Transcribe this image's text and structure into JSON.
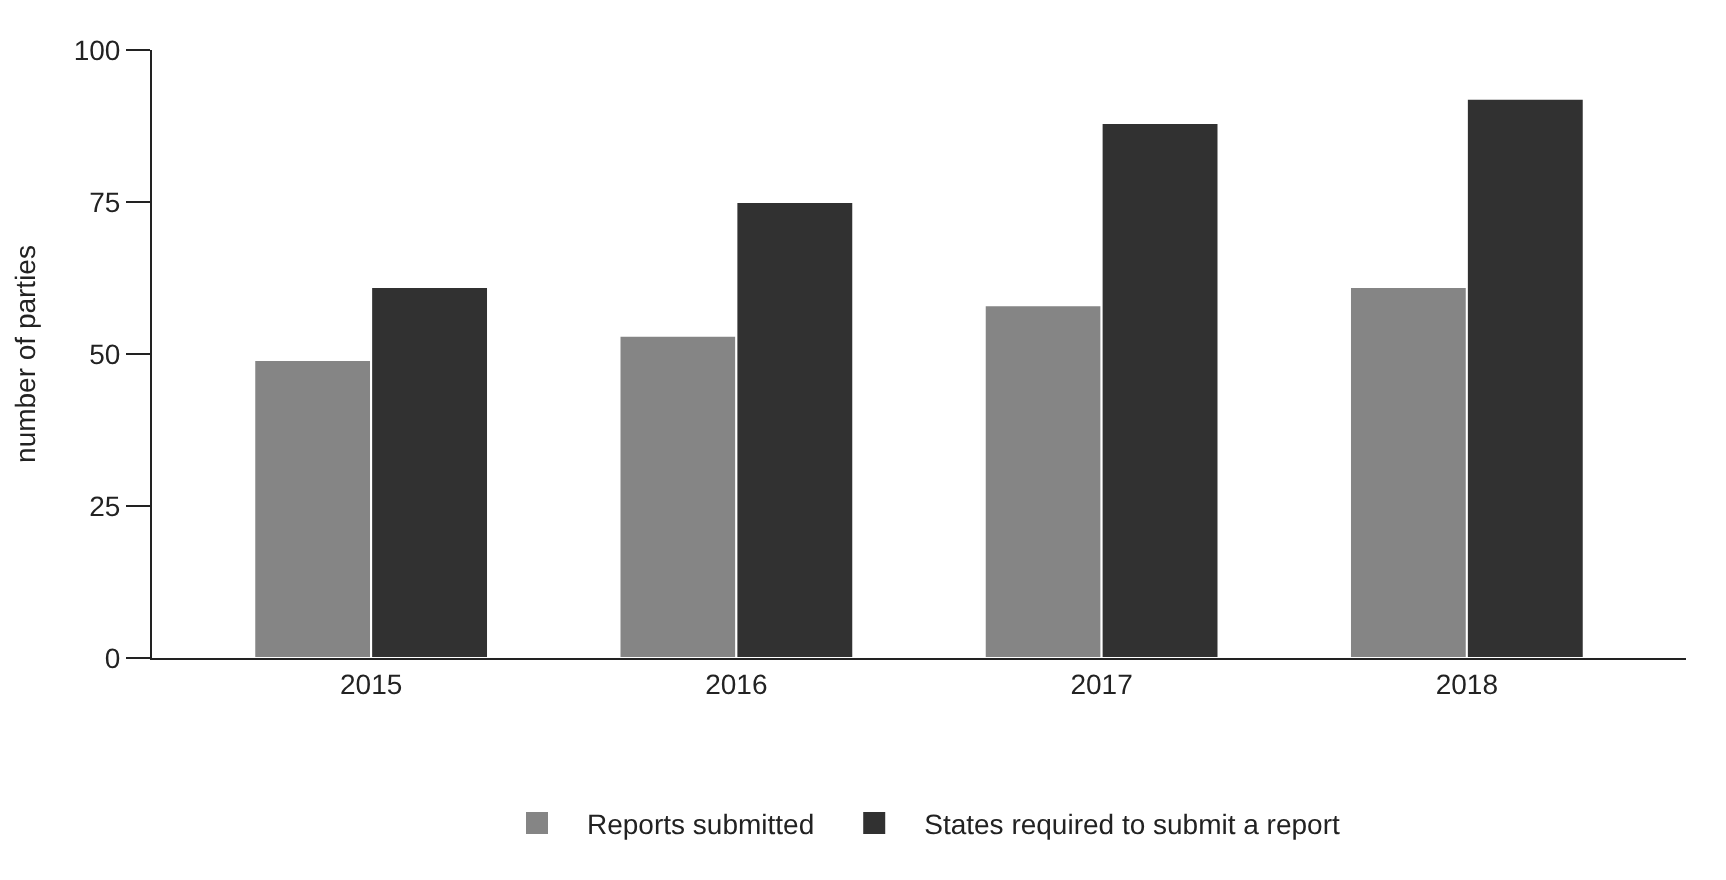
{
  "chart_data": {
    "type": "bar",
    "ylabel": "number of parties",
    "categories": [
      "2015",
      "2016",
      "2017",
      "2018"
    ],
    "series": [
      {
        "name": "Reports submitted",
        "color": "#858585",
        "values": [
          49,
          53,
          58,
          61
        ]
      },
      {
        "name": "States required to submit a report",
        "color": "#313131",
        "values": [
          61,
          75,
          88,
          92
        ]
      }
    ],
    "ylim": [
      0,
      100
    ],
    "yticks": [
      0,
      25,
      50,
      75,
      100
    ],
    "legend": "bottom"
  }
}
